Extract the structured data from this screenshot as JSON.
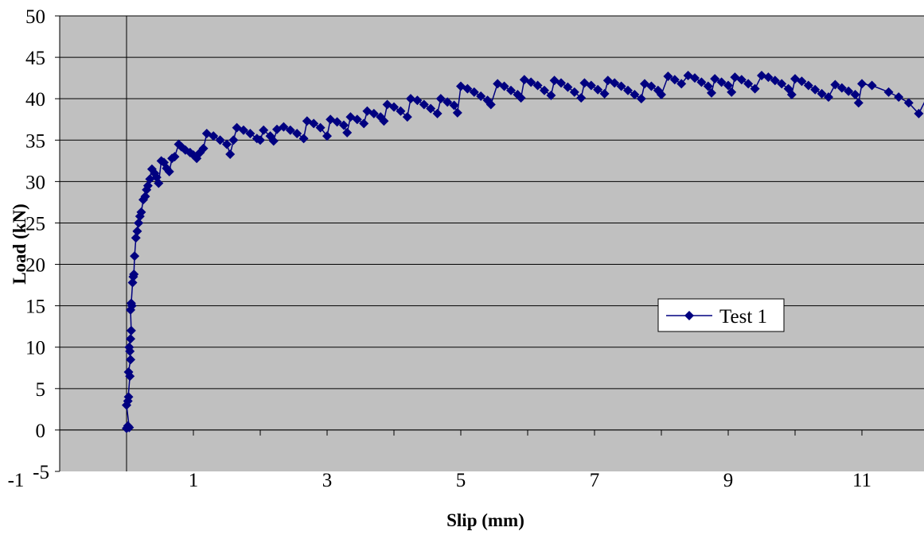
{
  "chart_data": {
    "type": "scatter",
    "title": "",
    "xlabel": "Slip (mm)",
    "ylabel": "Load (kN)",
    "xlim": [
      -1,
      12
    ],
    "ylim": [
      -5,
      50
    ],
    "x_ticks": [
      "-1",
      "1",
      "3",
      "5",
      "7",
      "9",
      "11"
    ],
    "y_ticks": [
      "-5",
      "0",
      "5",
      "10",
      "15",
      "20",
      "25",
      "30",
      "35",
      "40",
      "45",
      "50"
    ],
    "grid": "horizontal",
    "legend_position": "right-middle",
    "plot_background": "#c0c0c0",
    "series": [
      {
        "name": "Test 1",
        "color": "#000080",
        "marker": "diamond",
        "points": [
          [
            0.0,
            0.2
          ],
          [
            0.02,
            0.5
          ],
          [
            0.04,
            0.3
          ],
          [
            0.0,
            3.0
          ],
          [
            0.03,
            4.0
          ],
          [
            0.02,
            3.5
          ],
          [
            0.05,
            6.5
          ],
          [
            0.03,
            7.0
          ],
          [
            0.06,
            8.5
          ],
          [
            0.05,
            9.5
          ],
          [
            0.04,
            10.0
          ],
          [
            0.06,
            11.0
          ],
          [
            0.07,
            12.0
          ],
          [
            0.06,
            14.5
          ],
          [
            0.08,
            15.0
          ],
          [
            0.07,
            15.3
          ],
          [
            0.09,
            17.8
          ],
          [
            0.1,
            18.5
          ],
          [
            0.11,
            18.8
          ],
          [
            0.12,
            21.0
          ],
          [
            0.14,
            23.2
          ],
          [
            0.16,
            24.0
          ],
          [
            0.18,
            25.0
          ],
          [
            0.2,
            25.8
          ],
          [
            0.22,
            26.3
          ],
          [
            0.25,
            27.8
          ],
          [
            0.28,
            28.2
          ],
          [
            0.3,
            29.0
          ],
          [
            0.32,
            29.5
          ],
          [
            0.35,
            30.3
          ],
          [
            0.38,
            31.5
          ],
          [
            0.42,
            31.0
          ],
          [
            0.45,
            30.5
          ],
          [
            0.48,
            29.8
          ],
          [
            0.52,
            32.5
          ],
          [
            0.56,
            32.3
          ],
          [
            0.6,
            31.6
          ],
          [
            0.64,
            31.2
          ],
          [
            0.68,
            32.8
          ],
          [
            0.72,
            33.0
          ],
          [
            0.78,
            34.5
          ],
          [
            0.82,
            34.2
          ],
          [
            0.88,
            33.8
          ],
          [
            0.95,
            33.5
          ],
          [
            1.0,
            33.2
          ],
          [
            1.05,
            32.8
          ],
          [
            1.1,
            33.5
          ],
          [
            1.15,
            34.0
          ],
          [
            1.2,
            35.8
          ],
          [
            1.3,
            35.5
          ],
          [
            1.4,
            35.0
          ],
          [
            1.5,
            34.5
          ],
          [
            1.55,
            33.3
          ],
          [
            1.6,
            35.0
          ],
          [
            1.65,
            36.5
          ],
          [
            1.75,
            36.2
          ],
          [
            1.85,
            35.8
          ],
          [
            1.95,
            35.2
          ],
          [
            2.0,
            35.0
          ],
          [
            2.05,
            36.2
          ],
          [
            2.15,
            35.5
          ],
          [
            2.2,
            34.9
          ],
          [
            2.25,
            36.3
          ],
          [
            2.35,
            36.6
          ],
          [
            2.45,
            36.2
          ],
          [
            2.55,
            35.8
          ],
          [
            2.65,
            35.2
          ],
          [
            2.7,
            37.3
          ],
          [
            2.8,
            37.0
          ],
          [
            2.9,
            36.5
          ],
          [
            3.0,
            35.5
          ],
          [
            3.05,
            37.5
          ],
          [
            3.15,
            37.2
          ],
          [
            3.25,
            36.8
          ],
          [
            3.3,
            35.9
          ],
          [
            3.35,
            37.8
          ],
          [
            3.45,
            37.5
          ],
          [
            3.55,
            37.0
          ],
          [
            3.6,
            38.5
          ],
          [
            3.7,
            38.2
          ],
          [
            3.8,
            37.8
          ],
          [
            3.85,
            37.3
          ],
          [
            3.9,
            39.3
          ],
          [
            4.0,
            39.0
          ],
          [
            4.1,
            38.5
          ],
          [
            4.2,
            37.8
          ],
          [
            4.25,
            40.0
          ],
          [
            4.35,
            39.8
          ],
          [
            4.45,
            39.3
          ],
          [
            4.55,
            38.8
          ],
          [
            4.65,
            38.2
          ],
          [
            4.7,
            40.0
          ],
          [
            4.8,
            39.6
          ],
          [
            4.9,
            39.2
          ],
          [
            4.95,
            38.3
          ],
          [
            5.0,
            41.5
          ],
          [
            5.1,
            41.2
          ],
          [
            5.2,
            40.8
          ],
          [
            5.3,
            40.3
          ],
          [
            5.4,
            39.8
          ],
          [
            5.45,
            39.3
          ],
          [
            5.55,
            41.8
          ],
          [
            5.65,
            41.5
          ],
          [
            5.75,
            41.0
          ],
          [
            5.85,
            40.5
          ],
          [
            5.9,
            40.1
          ],
          [
            5.95,
            42.3
          ],
          [
            6.05,
            42.0
          ],
          [
            6.15,
            41.6
          ],
          [
            6.25,
            41.0
          ],
          [
            6.35,
            40.4
          ],
          [
            6.4,
            42.2
          ],
          [
            6.5,
            41.9
          ],
          [
            6.6,
            41.4
          ],
          [
            6.7,
            40.8
          ],
          [
            6.8,
            40.1
          ],
          [
            6.85,
            41.9
          ],
          [
            6.95,
            41.6
          ],
          [
            7.05,
            41.1
          ],
          [
            7.15,
            40.6
          ],
          [
            7.2,
            42.2
          ],
          [
            7.3,
            41.9
          ],
          [
            7.4,
            41.5
          ],
          [
            7.5,
            41.0
          ],
          [
            7.6,
            40.5
          ],
          [
            7.7,
            40.0
          ],
          [
            7.75,
            41.8
          ],
          [
            7.85,
            41.5
          ],
          [
            7.95,
            41.0
          ],
          [
            8.0,
            40.5
          ],
          [
            8.1,
            42.7
          ],
          [
            8.2,
            42.3
          ],
          [
            8.3,
            41.8
          ],
          [
            8.4,
            42.8
          ],
          [
            8.5,
            42.5
          ],
          [
            8.6,
            42.0
          ],
          [
            8.7,
            41.5
          ],
          [
            8.75,
            40.7
          ],
          [
            8.8,
            42.4
          ],
          [
            8.9,
            42.0
          ],
          [
            9.0,
            41.6
          ],
          [
            9.05,
            40.8
          ],
          [
            9.1,
            42.6
          ],
          [
            9.2,
            42.3
          ],
          [
            9.3,
            41.8
          ],
          [
            9.4,
            41.2
          ],
          [
            9.5,
            42.8
          ],
          [
            9.6,
            42.6
          ],
          [
            9.7,
            42.2
          ],
          [
            9.8,
            41.8
          ],
          [
            9.9,
            41.2
          ],
          [
            9.95,
            40.5
          ],
          [
            10.0,
            42.4
          ],
          [
            10.1,
            42.1
          ],
          [
            10.2,
            41.6
          ],
          [
            10.3,
            41.1
          ],
          [
            10.4,
            40.6
          ],
          [
            10.5,
            40.2
          ],
          [
            10.6,
            41.7
          ],
          [
            10.7,
            41.3
          ],
          [
            10.8,
            40.9
          ],
          [
            10.9,
            40.5
          ],
          [
            10.95,
            39.5
          ],
          [
            11.0,
            41.8
          ],
          [
            11.15,
            41.6
          ],
          [
            11.4,
            40.8
          ],
          [
            11.55,
            40.2
          ],
          [
            11.7,
            39.5
          ],
          [
            11.85,
            38.2
          ],
          [
            12.0,
            40.6
          ]
        ]
      }
    ]
  }
}
